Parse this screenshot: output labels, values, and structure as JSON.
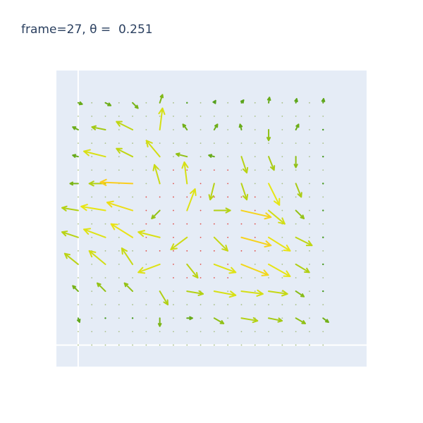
{
  "chart_data": {
    "type": "quiver",
    "title": "frame=27, θ =  0.251",
    "xlabel": "",
    "ylabel": "",
    "xlim": [
      -0.8,
      10.6
    ],
    "ylim": [
      -0.8,
      10.2
    ],
    "grid": true,
    "colorscale": "yellow-green",
    "grid_points": {
      "x": [
        0,
        1,
        2,
        3,
        4,
        5,
        6,
        7,
        8,
        9
      ],
      "y": [
        0,
        1,
        2,
        3,
        4,
        5,
        6,
        7,
        8,
        9
      ]
    },
    "arrows": [
      {
        "x": 0,
        "y": 9,
        "u": 0.15,
        "v": -0.05,
        "speed": 0.2
      },
      {
        "x": 1,
        "y": 9,
        "u": 0.2,
        "v": -0.1,
        "speed": 0.22
      },
      {
        "x": 2,
        "y": 9,
        "u": 0.2,
        "v": -0.2,
        "speed": 0.28
      },
      {
        "x": 3,
        "y": 9,
        "u": 0.1,
        "v": 0.3,
        "speed": 0.32
      },
      {
        "x": 4,
        "y": 9,
        "u": 0.0,
        "v": 0.05,
        "speed": 0.08
      },
      {
        "x": 5,
        "y": 9,
        "u": 0.05,
        "v": 0.08,
        "speed": 0.1
      },
      {
        "x": 6,
        "y": 9,
        "u": 0.08,
        "v": 0.1,
        "speed": 0.13
      },
      {
        "x": 7,
        "y": 9,
        "u": 0.03,
        "v": 0.2,
        "speed": 0.2
      },
      {
        "x": 8,
        "y": 9,
        "u": 0.03,
        "v": 0.15,
        "speed": 0.15
      },
      {
        "x": 9,
        "y": 9,
        "u": 0.02,
        "v": 0.15,
        "speed": 0.15
      },
      {
        "x": 0,
        "y": 8,
        "u": -0.2,
        "v": 0.1,
        "speed": 0.22
      },
      {
        "x": 1,
        "y": 8,
        "u": -0.5,
        "v": 0.1,
        "speed": 0.5
      },
      {
        "x": 2,
        "y": 8,
        "u": -0.6,
        "v": 0.3,
        "speed": 0.67
      },
      {
        "x": 3,
        "y": 8,
        "u": 0.1,
        "v": 0.8,
        "speed": 0.8
      },
      {
        "x": 4,
        "y": 8,
        "u": -0.15,
        "v": 0.2,
        "speed": 0.25
      },
      {
        "x": 5,
        "y": 8,
        "u": 0.12,
        "v": 0.2,
        "speed": 0.23
      },
      {
        "x": 6,
        "y": 8,
        "u": -0.05,
        "v": 0.2,
        "speed": 0.2
      },
      {
        "x": 7,
        "y": 8,
        "u": 0.0,
        "v": -0.4,
        "speed": 0.4
      },
      {
        "x": 8,
        "y": 8,
        "u": 0.1,
        "v": 0.2,
        "speed": 0.22
      },
      {
        "x": 9,
        "y": 8,
        "u": 0.0,
        "v": 0.0,
        "speed": 0.02
      },
      {
        "x": 0,
        "y": 7,
        "u": -0.2,
        "v": 0.05,
        "speed": 0.2
      },
      {
        "x": 1,
        "y": 7,
        "u": -0.8,
        "v": 0.2,
        "speed": 0.82
      },
      {
        "x": 2,
        "y": 7,
        "u": -0.6,
        "v": 0.3,
        "speed": 0.67
      },
      {
        "x": 3,
        "y": 7,
        "u": -0.5,
        "v": 0.6,
        "speed": 0.78
      },
      {
        "x": 4,
        "y": 7,
        "u": -0.4,
        "v": 0.1,
        "speed": 0.41
      },
      {
        "x": 5,
        "y": 7,
        "u": -0.2,
        "v": 0.05,
        "speed": 0.2
      },
      {
        "x": 6,
        "y": 7,
        "u": 0.2,
        "v": -0.6,
        "speed": 0.63
      },
      {
        "x": 7,
        "y": 7,
        "u": 0.2,
        "v": -0.5,
        "speed": 0.54
      },
      {
        "x": 8,
        "y": 7,
        "u": 0.0,
        "v": -0.4,
        "speed": 0.4
      },
      {
        "x": 9,
        "y": 7,
        "u": 0.0,
        "v": 0.0,
        "speed": 0.02
      },
      {
        "x": 0,
        "y": 6,
        "u": -0.3,
        "v": 0.0,
        "speed": 0.3
      },
      {
        "x": 1,
        "y": 6,
        "u": -0.6,
        "v": 0.0,
        "speed": 0.6
      },
      {
        "x": 2,
        "y": 6,
        "u": -1.2,
        "v": 0.05,
        "speed": 1.2
      },
      {
        "x": 3,
        "y": 6,
        "u": -0.2,
        "v": 0.7,
        "speed": 0.73
      },
      {
        "x": 4,
        "y": 6,
        "u": -0.1,
        "v": 0.8,
        "speed": 0.8
      },
      {
        "x": 5,
        "y": 6,
        "u": -0.15,
        "v": -0.6,
        "speed": 0.62
      },
      {
        "x": 6,
        "y": 6,
        "u": 0.2,
        "v": -0.6,
        "speed": 0.63
      },
      {
        "x": 7,
        "y": 6,
        "u": 0.4,
        "v": -0.8,
        "speed": 0.9
      },
      {
        "x": 8,
        "y": 6,
        "u": 0.2,
        "v": -0.5,
        "speed": 0.54
      },
      {
        "x": 9,
        "y": 6,
        "u": 0.0,
        "v": 0.0,
        "speed": 0.02
      },
      {
        "x": 0,
        "y": 5,
        "u": -0.6,
        "v": 0.1,
        "speed": 0.6
      },
      {
        "x": 1,
        "y": 5,
        "u": -0.9,
        "v": 0.15,
        "speed": 0.91
      },
      {
        "x": 2,
        "y": 5,
        "u": -0.95,
        "v": 0.3,
        "speed": 1.0
      },
      {
        "x": 3,
        "y": 5,
        "u": -0.3,
        "v": -0.3,
        "speed": 0.42
      },
      {
        "x": 4,
        "y": 5,
        "u": 0.3,
        "v": 0.8,
        "speed": 0.85
      },
      {
        "x": 5,
        "y": 5,
        "u": 0.6,
        "v": 0.0,
        "speed": 0.6
      },
      {
        "x": 6,
        "y": 5,
        "u": 1.1,
        "v": -0.25,
        "speed": 1.13
      },
      {
        "x": 7,
        "y": 5,
        "u": 0.6,
        "v": -0.5,
        "speed": 0.78
      },
      {
        "x": 8,
        "y": 5,
        "u": 0.3,
        "v": -0.3,
        "speed": 0.42
      },
      {
        "x": 9,
        "y": 5,
        "u": 0.0,
        "v": 0.0,
        "speed": 0.02
      },
      {
        "x": 0,
        "y": 4,
        "u": -0.6,
        "v": 0.2,
        "speed": 0.63
      },
      {
        "x": 1,
        "y": 4,
        "u": -0.8,
        "v": 0.3,
        "speed": 0.85
      },
      {
        "x": 2,
        "y": 4,
        "u": -0.8,
        "v": 0.5,
        "speed": 0.94
      },
      {
        "x": 3,
        "y": 4,
        "u": -0.8,
        "v": 0.2,
        "speed": 0.82
      },
      {
        "x": 4,
        "y": 4,
        "u": -0.6,
        "v": -0.45,
        "speed": 0.75
      },
      {
        "x": 5,
        "y": 4,
        "u": 0.5,
        "v": -0.5,
        "speed": 0.71
      },
      {
        "x": 6,
        "y": 4,
        "u": 1.1,
        "v": -0.3,
        "speed": 1.14
      },
      {
        "x": 7,
        "y": 4,
        "u": 0.8,
        "v": -0.5,
        "speed": 0.94
      },
      {
        "x": 8,
        "y": 4,
        "u": 0.6,
        "v": -0.3,
        "speed": 0.67
      },
      {
        "x": 9,
        "y": 4,
        "u": 0.0,
        "v": 0.0,
        "speed": 0.02
      },
      {
        "x": 0,
        "y": 3,
        "u": -0.5,
        "v": 0.4,
        "speed": 0.64
      },
      {
        "x": 1,
        "y": 3,
        "u": -0.6,
        "v": 0.5,
        "speed": 0.78
      },
      {
        "x": 2,
        "y": 3,
        "u": -0.4,
        "v": 0.6,
        "speed": 0.72
      },
      {
        "x": 3,
        "y": 3,
        "u": -0.8,
        "v": -0.3,
        "speed": 0.85
      },
      {
        "x": 4,
        "y": 3,
        "u": 0.4,
        "v": -0.5,
        "speed": 0.64
      },
      {
        "x": 5,
        "y": 3,
        "u": 0.8,
        "v": -0.3,
        "speed": 0.85
      },
      {
        "x": 6,
        "y": 3,
        "u": 1.0,
        "v": -0.4,
        "speed": 1.08
      },
      {
        "x": 7,
        "y": 3,
        "u": 0.8,
        "v": -0.45,
        "speed": 0.92
      },
      {
        "x": 8,
        "y": 3,
        "u": 0.5,
        "v": -0.3,
        "speed": 0.58
      },
      {
        "x": 9,
        "y": 3,
        "u": 0.0,
        "v": 0.0,
        "speed": 0.02
      },
      {
        "x": 0,
        "y": 2,
        "u": -0.2,
        "v": 0.2,
        "speed": 0.28
      },
      {
        "x": 1,
        "y": 2,
        "u": -0.3,
        "v": 0.3,
        "speed": 0.42
      },
      {
        "x": 2,
        "y": 2,
        "u": -0.3,
        "v": 0.3,
        "speed": 0.42
      },
      {
        "x": 3,
        "y": 2,
        "u": 0.3,
        "v": -0.5,
        "speed": 0.58
      },
      {
        "x": 4,
        "y": 2,
        "u": 0.6,
        "v": -0.1,
        "speed": 0.6
      },
      {
        "x": 5,
        "y": 2,
        "u": 0.8,
        "v": -0.15,
        "speed": 0.81
      },
      {
        "x": 6,
        "y": 2,
        "u": 0.8,
        "v": -0.1,
        "speed": 0.8
      },
      {
        "x": 7,
        "y": 2,
        "u": 0.7,
        "v": -0.1,
        "speed": 0.7
      },
      {
        "x": 8,
        "y": 2,
        "u": 0.3,
        "v": -0.2,
        "speed": 0.36
      },
      {
        "x": 9,
        "y": 2,
        "u": 0.0,
        "v": 0.0,
        "speed": 0.02
      },
      {
        "x": 0,
        "y": 1,
        "u": 0.05,
        "v": -0.15,
        "speed": 0.16
      },
      {
        "x": 1,
        "y": 1,
        "u": 0.0,
        "v": 0.0,
        "speed": 0.02
      },
      {
        "x": 2,
        "y": 1,
        "u": 0.0,
        "v": 0.0,
        "speed": 0.02
      },
      {
        "x": 3,
        "y": 1,
        "u": 0.0,
        "v": -0.3,
        "speed": 0.3
      },
      {
        "x": 4,
        "y": 1,
        "u": 0.2,
        "v": 0.0,
        "speed": 0.2
      },
      {
        "x": 5,
        "y": 1,
        "u": 0.35,
        "v": -0.2,
        "speed": 0.4
      },
      {
        "x": 6,
        "y": 1,
        "u": 0.6,
        "v": -0.1,
        "speed": 0.6
      },
      {
        "x": 7,
        "y": 1,
        "u": 0.5,
        "v": -0.1,
        "speed": 0.51
      },
      {
        "x": 8,
        "y": 1,
        "u": 0.35,
        "v": -0.2,
        "speed": 0.4
      },
      {
        "x": 9,
        "y": 1,
        "u": 0.2,
        "v": -0.15,
        "speed": 0.25
      }
    ]
  }
}
